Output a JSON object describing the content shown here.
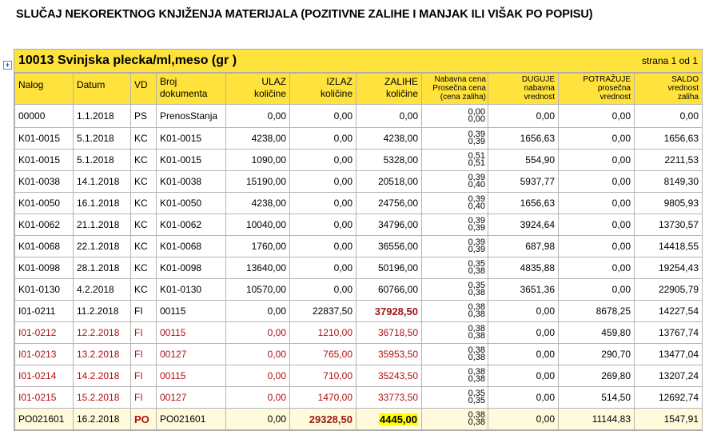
{
  "doc_title": "SLUČAJ NEKOREKTNOG KNJIŽENJA MATERIJALA  (POZITIVNE  ZALIHE I MANJAK ILI VIŠAK PO POPISU)",
  "article": "10013  Svinjska plecka/ml,meso  (gr )",
  "page_info": "strana 1 od 1",
  "icons": {
    "expand": "plus-box-icon"
  },
  "columns": {
    "nalog": "Nalog",
    "datum": "Datum",
    "vd": "VD",
    "broj1": "Broj",
    "broj2": "dokumenta",
    "ulaz1": "ULAZ",
    "ulaz2": "količine",
    "izlaz1": "IZLAZ",
    "izlaz2": "količine",
    "zalihe1": "ZALIHE",
    "zalihe2": "količine",
    "cena1": "Nabavna cena",
    "cena2": "Prosečna cena",
    "cena3": "(cena zaliha)",
    "duguje1": "DUGUJE",
    "duguje2": "nabavna",
    "duguje3": "vrednost",
    "potrazuje1": "POTRAŽUJE",
    "potrazuje2": "prosečna",
    "potrazuje3": "vrednost",
    "saldo1": "SALDO",
    "saldo2": "vrednost",
    "saldo3": "zaliha"
  },
  "rows": [
    {
      "nalog": "00000",
      "datum": "1.1.2018",
      "vd": "PS",
      "broj": "PrenosStanja",
      "ulaz": "0,00",
      "izlaz": "0,00",
      "zalihe": "0,00",
      "nab": "0,00",
      "pros": "0,00",
      "duguje": "0,00",
      "potrazuje": "0,00",
      "saldo": "0,00"
    },
    {
      "nalog": "K01-0015",
      "datum": "5.1.2018",
      "vd": "KC",
      "broj": "K01-0015",
      "ulaz": "4238,00",
      "izlaz": "0,00",
      "zalihe": "4238,00",
      "nab": "0,39",
      "pros": "0,39",
      "duguje": "1656,63",
      "potrazuje": "0,00",
      "saldo": "1656,63"
    },
    {
      "nalog": "K01-0015",
      "datum": "5.1.2018",
      "vd": "KC",
      "broj": "K01-0015",
      "ulaz": "1090,00",
      "izlaz": "0,00",
      "zalihe": "5328,00",
      "nab": "0,51",
      "pros": "0,51",
      "duguje": "554,90",
      "potrazuje": "0,00",
      "saldo": "2211,53"
    },
    {
      "nalog": "K01-0038",
      "datum": "14.1.2018",
      "vd": "KC",
      "broj": "K01-0038",
      "ulaz": "15190,00",
      "izlaz": "0,00",
      "zalihe": "20518,00",
      "nab": "0,39",
      "pros": "0,40",
      "duguje": "5937,77",
      "potrazuje": "0,00",
      "saldo": "8149,30"
    },
    {
      "nalog": "K01-0050",
      "datum": "16.1.2018",
      "vd": "KC",
      "broj": "K01-0050",
      "ulaz": "4238,00",
      "izlaz": "0,00",
      "zalihe": "24756,00",
      "nab": "0,39",
      "pros": "0,40",
      "duguje": "1656,63",
      "potrazuje": "0,00",
      "saldo": "9805,93"
    },
    {
      "nalog": "K01-0062",
      "datum": "21.1.2018",
      "vd": "KC",
      "broj": "K01-0062",
      "ulaz": "10040,00",
      "izlaz": "0,00",
      "zalihe": "34796,00",
      "nab": "0,39",
      "pros": "0,39",
      "duguje": "3924,64",
      "potrazuje": "0,00",
      "saldo": "13730,57"
    },
    {
      "nalog": "K01-0068",
      "datum": "22.1.2018",
      "vd": "KC",
      "broj": "K01-0068",
      "ulaz": "1760,00",
      "izlaz": "0,00",
      "zalihe": "36556,00",
      "nab": "0,39",
      "pros": "0,39",
      "duguje": "687,98",
      "potrazuje": "0,00",
      "saldo": "14418,55"
    },
    {
      "nalog": "K01-0098",
      "datum": "28.1.2018",
      "vd": "KC",
      "broj": "K01-0098",
      "ulaz": "13640,00",
      "izlaz": "0,00",
      "zalihe": "50196,00",
      "nab": "0,35",
      "pros": "0,38",
      "duguje": "4835,88",
      "potrazuje": "0,00",
      "saldo": "19254,43"
    },
    {
      "nalog": "K01-0130",
      "datum": "4.2.2018",
      "vd": "KC",
      "broj": "K01-0130",
      "ulaz": "10570,00",
      "izlaz": "0,00",
      "zalihe": "60766,00",
      "nab": "0,35",
      "pros": "0,38",
      "duguje": "3651,36",
      "potrazuje": "0,00",
      "saldo": "22905,79"
    },
    {
      "nalog": "I01-0211",
      "datum": "11.2.2018",
      "vd": "FI",
      "broj": "00115",
      "ulaz": "0,00",
      "izlaz": "22837,50",
      "zalihe": "37928,50",
      "nab": "0,38",
      "pros": "0,38",
      "duguje": "0,00",
      "potrazuje": "8678,25",
      "saldo": "14227,54"
    },
    {
      "nalog": "I01-0212",
      "datum": "12.2.2018",
      "vd": "FI",
      "broj": "00115",
      "ulaz": "0,00",
      "izlaz": "1210,00",
      "zalihe": "36718,50",
      "nab": "0,38",
      "pros": "0,38",
      "duguje": "0,00",
      "potrazuje": "459,80",
      "saldo": "13767,74"
    },
    {
      "nalog": "I01-0213",
      "datum": "13.2.2018",
      "vd": "FI",
      "broj": "00127",
      "ulaz": "0,00",
      "izlaz": "765,00",
      "zalihe": "35953,50",
      "nab": "0,38",
      "pros": "0,38",
      "duguje": "0,00",
      "potrazuje": "290,70",
      "saldo": "13477,04"
    },
    {
      "nalog": "I01-0214",
      "datum": "14.2.2018",
      "vd": "FI",
      "broj": "00115",
      "ulaz": "0,00",
      "izlaz": "710,00",
      "zalihe": "35243,50",
      "nab": "0,38",
      "pros": "0,38",
      "duguje": "0,00",
      "potrazuje": "269,80",
      "saldo": "13207,24"
    },
    {
      "nalog": "I01-0215",
      "datum": "15.2.2018",
      "vd": "FI",
      "broj": "00127",
      "ulaz": "0,00",
      "izlaz": "1470,00",
      "zalihe": "33773,50",
      "nab": "0,35",
      "pros": "0,35",
      "duguje": "0,00",
      "potrazuje": "514,50",
      "saldo": "12692,74"
    },
    {
      "nalog": "PO021601",
      "datum": "16.2.2018",
      "vd": "PO",
      "broj": "PO021601",
      "ulaz": "0,00",
      "izlaz": "29328,50",
      "zalihe": "4445,00",
      "nab": "0,38",
      "pros": "0,38",
      "duguje": "0,00",
      "potrazuje": "11144,83",
      "saldo": "1547,91"
    }
  ]
}
